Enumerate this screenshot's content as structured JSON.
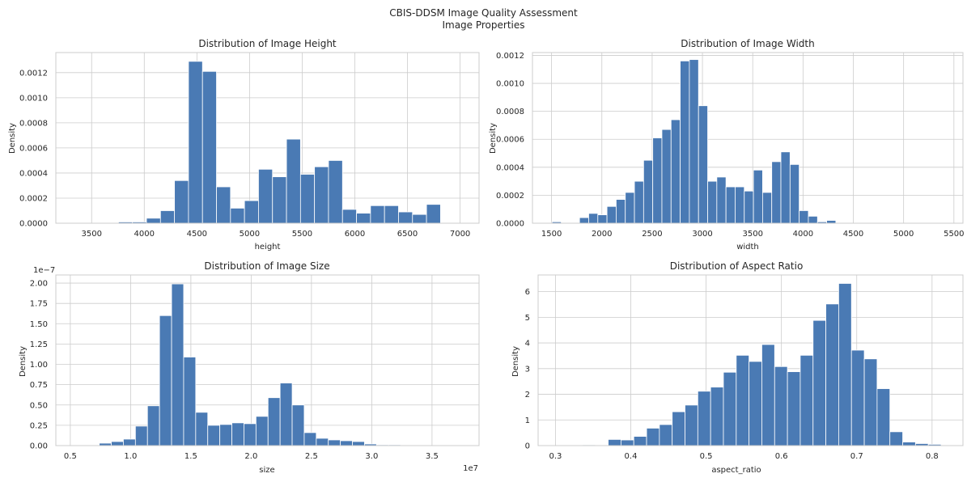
{
  "suptitle": {
    "line1": "CBIS-DDSM Image Quality Assessment",
    "line2": "Image Properties"
  },
  "colors": {
    "bar": "#4a7ab4",
    "grid": "#cccccc",
    "spine": "#cccccc"
  },
  "chart_data": [
    {
      "type": "bar",
      "title": "Distribution of Image Height",
      "xlabel": "height",
      "ylabel": "Density",
      "xlim": [
        3160,
        7180
      ],
      "ylim": [
        0,
        0.00136
      ],
      "grid": true,
      "xticks": [
        3500,
        4000,
        4500,
        5000,
        5500,
        6000,
        6500,
        7000
      ],
      "xtick_labels": [
        "3500",
        "4000",
        "4500",
        "5000",
        "5500",
        "6000",
        "6500",
        "7000"
      ],
      "yticks": [
        0,
        0.0002,
        0.0004,
        0.0006,
        0.0008,
        0.001,
        0.0012
      ],
      "ytick_labels": [
        "0.0000",
        "0.0002",
        "0.0004",
        "0.0006",
        "0.0008",
        "0.0010",
        "0.0012"
      ],
      "bin_edges": [
        3356,
        3489,
        3622,
        3755,
        3888,
        4021,
        4154,
        4287,
        4420,
        4553,
        4686,
        4819,
        4952,
        5085,
        5218,
        5351,
        5484,
        5617,
        5750,
        5883,
        6016,
        6149,
        6282,
        6415,
        6548,
        6681,
        6814,
        6947
      ],
      "values": [
        0,
        0,
        0,
        1e-05,
        1e-05,
        4e-05,
        0.0001,
        0.00034,
        0.00129,
        0.00121,
        0.00029,
        0.00012,
        0.00018,
        0.00043,
        0.00037,
        0.00067,
        0.00039,
        0.00045,
        0.0005,
        0.00011,
        8e-05,
        0.00014,
        0.00014,
        9e-05,
        7e-05,
        0.00015,
        0
      ]
    },
    {
      "type": "bar",
      "title": "Distribution of Image Width",
      "xlabel": "width",
      "ylabel": "Density",
      "xlim": [
        1310,
        5590
      ],
      "ylim": [
        0,
        0.00122
      ],
      "grid": true,
      "xticks": [
        1500,
        2000,
        2500,
        3000,
        3500,
        4000,
        4500,
        5000,
        5500
      ],
      "xtick_labels": [
        "1500",
        "2000",
        "2500",
        "3000",
        "3500",
        "4000",
        "4500",
        "5000",
        "5500"
      ],
      "yticks": [
        0,
        0.0002,
        0.0004,
        0.0006,
        0.0008,
        0.001,
        0.0012
      ],
      "ytick_labels": [
        "0.0000",
        "0.0002",
        "0.0004",
        "0.0006",
        "0.0008",
        "0.0010",
        "0.0012"
      ],
      "bin_edges": [
        1505,
        1596,
        1687,
        1778,
        1869,
        1960,
        2051,
        2142,
        2233,
        2324,
        2415,
        2506,
        2597,
        2688,
        2779,
        2870,
        2961,
        3052,
        3143,
        3234,
        3325,
        3416,
        3507,
        3598,
        3689,
        3780,
        3871,
        3962,
        4053,
        4144,
        4235,
        4326,
        4417,
        4508,
        4599,
        4690,
        4781,
        4872,
        4963,
        5054,
        5145,
        5236,
        5327,
        5418
      ],
      "values": [
        1e-05,
        0,
        0,
        4e-05,
        7e-05,
        6e-05,
        0.00012,
        0.00017,
        0.00022,
        0.0003,
        0.00045,
        0.00061,
        0.00067,
        0.00074,
        0.00116,
        0.00117,
        0.00084,
        0.0003,
        0.00033,
        0.00026,
        0.00026,
        0.00023,
        0.00038,
        0.00022,
        0.00044,
        0.00051,
        0.00042,
        9e-05,
        5e-05,
        1e-05,
        2e-05,
        0,
        0,
        0,
        0,
        0,
        0,
        0,
        0,
        0,
        0,
        0,
        0
      ]
    },
    {
      "type": "bar",
      "title": "Distribution of Image Size",
      "xlabel": "size",
      "ylabel": "Density",
      "offset_text": "1e−7",
      "x_offset_text": "1e7",
      "xlim": [
        3800000,
        38900000
      ],
      "ylim": [
        0,
        2.1e-07
      ],
      "grid": true,
      "xticks": [
        5000000,
        10000000,
        15000000,
        20000000,
        25000000,
        30000000,
        35000000
      ],
      "xtick_labels": [
        "0.5",
        "1.0",
        "1.5",
        "2.0",
        "2.5",
        "3.0",
        "3.5"
      ],
      "yticks": [
        0,
        2.5e-08,
        5e-08,
        7.5e-08,
        1e-07,
        1.25e-07,
        1.5e-07,
        1.75e-07,
        2e-07
      ],
      "ytick_labels": [
        "0.00",
        "0.25",
        "0.50",
        "0.75",
        "1.00",
        "1.25",
        "1.50",
        "1.75",
        "2.00"
      ],
      "bin_edges": [
        5400000,
        6400000,
        7400000,
        8400000,
        9400000,
        10400000,
        11400000,
        12400000,
        13400000,
        14400000,
        15400000,
        16400000,
        17400000,
        18400000,
        19400000,
        20400000,
        21400000,
        22400000,
        23400000,
        24400000,
        25400000,
        26400000,
        27400000,
        28400000,
        29400000,
        30400000,
        31400000,
        32400000,
        33400000,
        34400000,
        35400000,
        36400000,
        37400000
      ],
      "values": [
        0,
        0,
        3e-09,
        5e-09,
        8e-09,
        2.4e-08,
        4.9e-08,
        1.6e-07,
        1.99e-07,
        1.09e-07,
        4.1e-08,
        2.5e-08,
        2.6e-08,
        2.8e-08,
        2.7e-08,
        3.6e-08,
        5.9e-08,
        7.7e-08,
        5e-08,
        1.6e-08,
        9e-09,
        7e-09,
        6e-09,
        5e-09,
        2e-09,
        1e-09,
        1e-09,
        0,
        0,
        0,
        0,
        0
      ]
    },
    {
      "type": "bar",
      "title": "Distribution of Aspect Ratio",
      "xlabel": "aspect_ratio",
      "ylabel": "Density",
      "xlim": [
        0.277,
        0.841
      ],
      "ylim": [
        0,
        6.65
      ],
      "grid": true,
      "xticks": [
        0.3,
        0.4,
        0.5,
        0.6,
        0.7,
        0.8
      ],
      "xtick_labels": [
        "0.3",
        "0.4",
        "0.5",
        "0.6",
        "0.7",
        "0.8"
      ],
      "yticks": [
        0,
        1,
        2,
        3,
        4,
        5,
        6
      ],
      "ytick_labels": [
        "0",
        "1",
        "2",
        "3",
        "4",
        "5",
        "6"
      ],
      "bin_edges": [
        0.302,
        0.319,
        0.336,
        0.353,
        0.37,
        0.387,
        0.404,
        0.421,
        0.438,
        0.455,
        0.472,
        0.489,
        0.506,
        0.523,
        0.54,
        0.557,
        0.574,
        0.591,
        0.608,
        0.625,
        0.642,
        0.659,
        0.676,
        0.693,
        0.71,
        0.727,
        0.744,
        0.761,
        0.778,
        0.795,
        0.812
      ],
      "values": [
        0,
        0,
        0.03,
        0.02,
        0.24,
        0.22,
        0.36,
        0.68,
        0.82,
        1.32,
        1.58,
        2.12,
        2.28,
        2.86,
        3.52,
        3.28,
        3.94,
        3.08,
        2.88,
        3.52,
        4.88,
        5.52,
        6.32,
        3.72,
        3.38,
        2.22,
        0.54,
        0.14,
        0.08,
        0.05
      ]
    }
  ]
}
